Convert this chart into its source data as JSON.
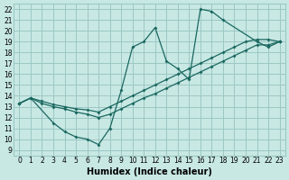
{
  "xlabel": "Humidex (Indice chaleur)",
  "bg_color": "#c8e8e4",
  "grid_color": "#9cc8c4",
  "line_color": "#1a6860",
  "xlim": [
    -0.5,
    23.5
  ],
  "ylim": [
    8.5,
    22.5
  ],
  "xticks": [
    0,
    1,
    2,
    3,
    4,
    5,
    6,
    7,
    8,
    9,
    10,
    11,
    12,
    13,
    14,
    15,
    16,
    17,
    18,
    19,
    20,
    21,
    22,
    23
  ],
  "yticks": [
    9,
    10,
    11,
    12,
    13,
    14,
    15,
    16,
    17,
    18,
    19,
    20,
    21,
    22
  ],
  "curve1_x": [
    0,
    1,
    3,
    4,
    5,
    6,
    7,
    8,
    9,
    10,
    11,
    12,
    13,
    14,
    15,
    16,
    17,
    18,
    21,
    22,
    23
  ],
  "curve1_y": [
    13.3,
    13.8,
    11.5,
    10.7,
    10.2,
    10.0,
    9.5,
    11.0,
    14.5,
    18.5,
    19.0,
    20.3,
    17.2,
    16.5,
    15.5,
    22.0,
    21.8,
    21.0,
    19.0,
    18.5,
    19.0
  ],
  "curve2_x": [
    0,
    1,
    2,
    3,
    4,
    5,
    6,
    7,
    8,
    9,
    10,
    11,
    12,
    13,
    14,
    15,
    16,
    17,
    18,
    19,
    20,
    21,
    22,
    23
  ],
  "curve2_y": [
    13.3,
    13.8,
    13.3,
    13.0,
    12.8,
    12.5,
    12.3,
    12.0,
    12.3,
    12.8,
    13.3,
    13.8,
    14.2,
    14.7,
    15.2,
    15.7,
    16.2,
    16.7,
    17.2,
    17.7,
    18.2,
    18.7,
    18.7,
    19.0
  ],
  "curve3_x": [
    0,
    1,
    2,
    3,
    4,
    5,
    6,
    7,
    8,
    9,
    10,
    11,
    12,
    13,
    14,
    15,
    16,
    17,
    18,
    19,
    20,
    21,
    22,
    23
  ],
  "curve3_y": [
    13.3,
    13.8,
    13.5,
    13.2,
    13.0,
    12.8,
    12.7,
    12.5,
    13.0,
    13.5,
    14.0,
    14.5,
    15.0,
    15.5,
    16.0,
    16.5,
    17.0,
    17.5,
    18.0,
    18.5,
    19.0,
    19.2,
    19.2,
    19.0
  ]
}
